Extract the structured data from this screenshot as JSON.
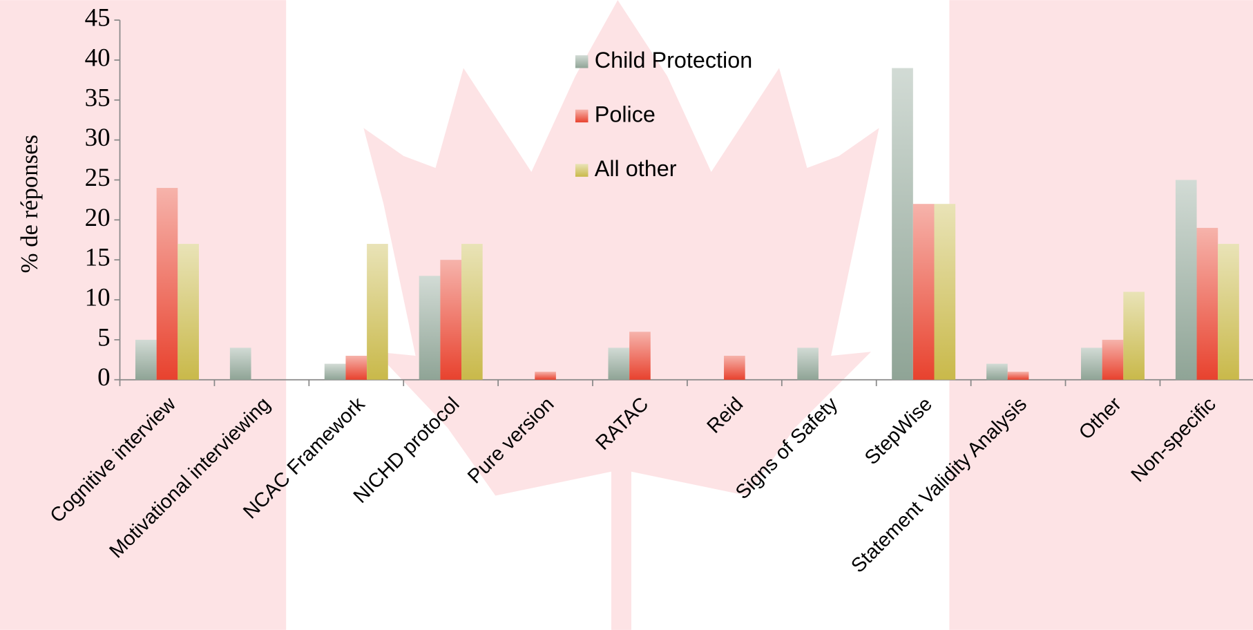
{
  "chart_data": {
    "type": "bar",
    "y_label": "% de réponses",
    "categories": [
      "Cognitive interview",
      "Motivational interviewing",
      "NCAC Framework",
      "NICHD protocol",
      "Pure version",
      "RATAC",
      "Reid",
      "Signs of Safety",
      "StepWise",
      "Statement Validity Analysis",
      "Other",
      "Non-specific"
    ],
    "series": [
      {
        "name": "Child Protection",
        "color": "#8fa496",
        "values": [
          5,
          4,
          2,
          13,
          0,
          4,
          0,
          4,
          39,
          2,
          4,
          25
        ]
      },
      {
        "name": "Police",
        "color": "#e8422e",
        "values": [
          24,
          0,
          3,
          15,
          1,
          6,
          3,
          0,
          22,
          1,
          5,
          19
        ]
      },
      {
        "name": "All other",
        "color": "#c9b94a",
        "values": [
          17,
          0,
          17,
          17,
          0,
          0,
          0,
          0,
          22,
          0,
          11,
          17
        ]
      }
    ],
    "ylim": [
      0,
      45
    ],
    "yticks": [
      0,
      5,
      10,
      15,
      20,
      25,
      30,
      35,
      40,
      45
    ]
  }
}
